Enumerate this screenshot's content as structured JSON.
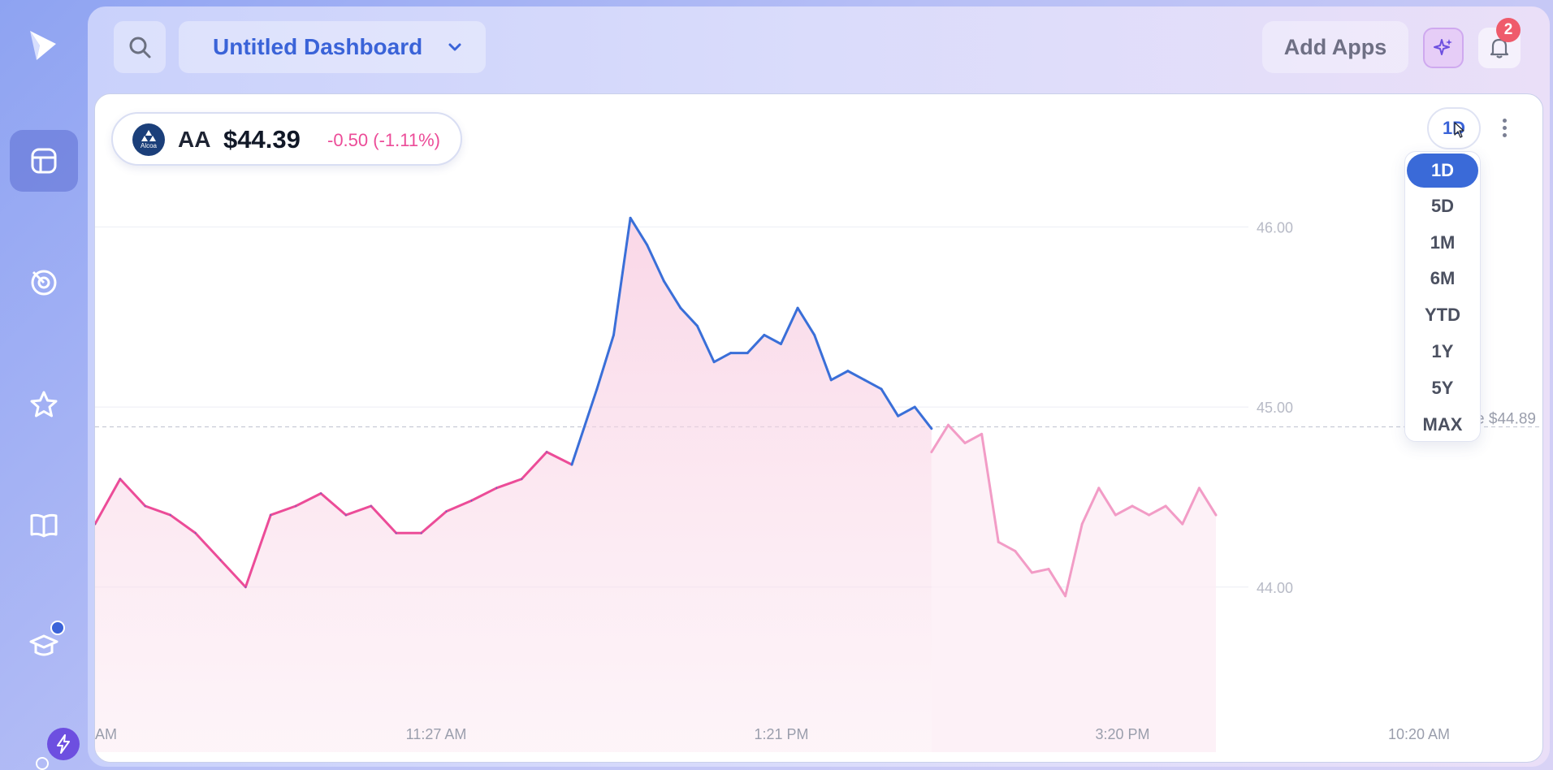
{
  "header": {
    "dashboard_title": "Untitled Dashboard",
    "add_apps_label": "Add Apps",
    "notification_count": "2"
  },
  "sidebar": {
    "items": [
      {
        "name": "dashboards",
        "icon": "layout-icon",
        "active": true
      },
      {
        "name": "tracker",
        "icon": "target-icon",
        "active": false
      },
      {
        "name": "favorites",
        "icon": "star-icon",
        "active": false
      },
      {
        "name": "library",
        "icon": "book-icon",
        "active": false
      },
      {
        "name": "learn",
        "icon": "graduation-cap-icon",
        "active": false
      }
    ]
  },
  "widget": {
    "logo_text": "Alcoa",
    "symbol": "AA",
    "price": "$44.39",
    "change": "-0.50 (-1.11%)",
    "range_label": "1D",
    "range_options": [
      "1D",
      "5D",
      "1M",
      "6M",
      "YTD",
      "1Y",
      "5Y",
      "MAX"
    ],
    "selected_range": "1D"
  },
  "colors": {
    "accent": "#3a63d8",
    "up_line": "#3a6fd8",
    "down_line": "#ec4c98",
    "badge": "#ef5b6b"
  },
  "chart_data": {
    "type": "line",
    "y_ticks": [
      "46.00",
      "45.00",
      "44.00"
    ],
    "x_ticks": [
      "AM",
      "11:27 AM",
      "1:21 PM",
      "3:20 PM",
      "10:20 AM"
    ],
    "prev_close_label": "Prev close $44.89",
    "prev_close": 44.89,
    "ylim": [
      43.85,
      46.25
    ],
    "series": [
      {
        "segment": "regular",
        "x": [
          0,
          3,
          6,
          9,
          12,
          15,
          18,
          21,
          24,
          27,
          30,
          33,
          36,
          39,
          42,
          45,
          48,
          51,
          54,
          57,
          60,
          62,
          64,
          66,
          68,
          70,
          72,
          74,
          76,
          78,
          80,
          82,
          84,
          86,
          88,
          90,
          92,
          94,
          96,
          98,
          100
        ],
        "values": [
          44.35,
          44.6,
          44.45,
          44.4,
          44.3,
          44.15,
          44.0,
          44.4,
          44.45,
          44.52,
          44.4,
          44.45,
          44.3,
          44.3,
          44.42,
          44.48,
          44.55,
          44.6,
          44.75,
          44.68,
          45.1,
          45.4,
          46.05,
          45.9,
          45.7,
          45.55,
          45.45,
          45.25,
          45.3,
          45.3,
          45.4,
          45.35,
          45.55,
          45.4,
          45.15,
          45.2,
          45.15,
          45.1,
          44.95,
          45.0,
          44.88
        ]
      },
      {
        "segment": "extended",
        "x": [
          100,
          102,
          104,
          106,
          108,
          110,
          112,
          114,
          116,
          118,
          120,
          122,
          124,
          126,
          128,
          130,
          132,
          134
        ],
        "values": [
          44.75,
          44.9,
          44.8,
          44.85,
          44.25,
          44.2,
          44.08,
          44.1,
          43.95,
          44.35,
          44.55,
          44.4,
          44.45,
          44.4,
          44.45,
          44.35,
          44.55,
          44.4
        ]
      }
    ]
  }
}
